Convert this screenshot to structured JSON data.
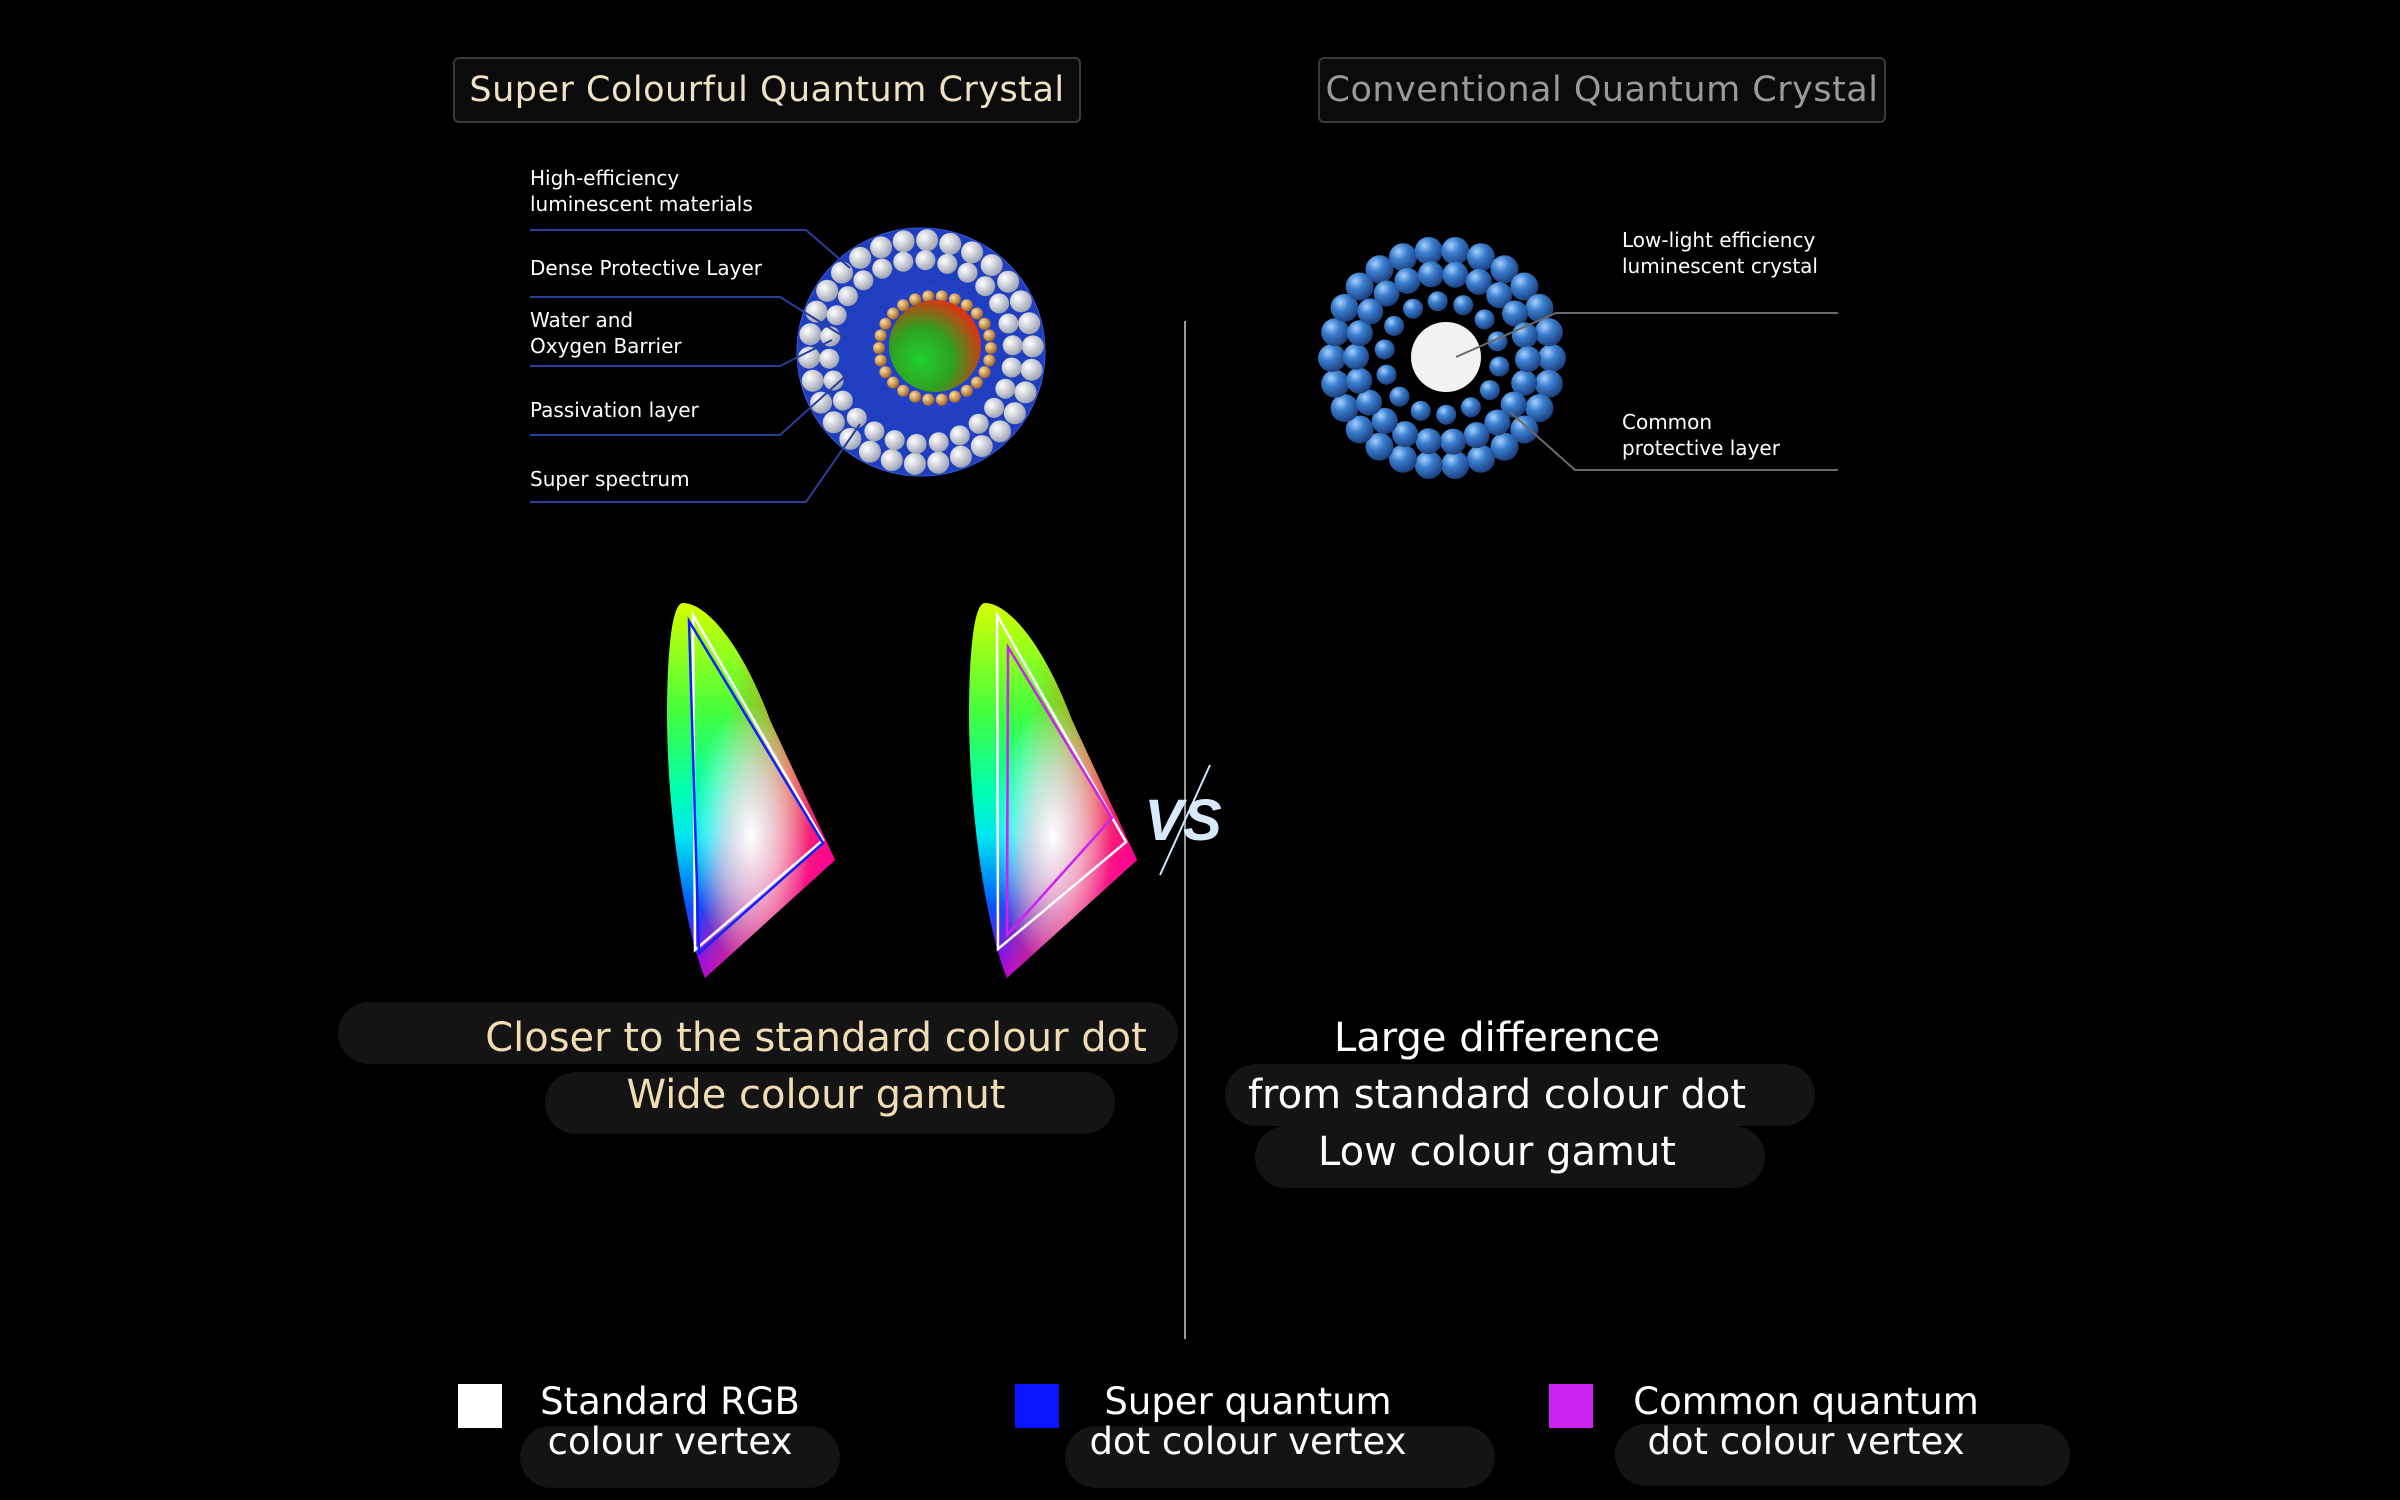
{
  "left": {
    "title": "Super Colourful Quantum Crystal",
    "labels": [
      {
        "line1": "High-efficiency",
        "line2": "luminescent materials"
      },
      {
        "line1": "Dense Protective Layer",
        "line2": ""
      },
      {
        "line1": "Water and",
        "line2": "Oxygen Barrier"
      },
      {
        "line1": "Passivation layer",
        "line2": ""
      },
      {
        "line1": "Super spectrum",
        "line2": ""
      }
    ],
    "caption": [
      "Closer to the standard colour dot",
      "Wide colour gamut"
    ]
  },
  "right": {
    "title": "Conventional Quantum Crystal",
    "labels": [
      {
        "line1": "Low-light efficiency",
        "line2": "luminescent crystal"
      },
      {
        "line1": "Common",
        "line2": "protective layer"
      }
    ],
    "caption": [
      "Large difference",
      "from standard colour dot",
      "Low colour gamut"
    ]
  },
  "vs_text": "VS",
  "legend": [
    {
      "line1": "Standard RGB",
      "line2": "colour vertex",
      "color": "#ffffff"
    },
    {
      "line1": "Super quantum",
      "line2": "dot colour vertex",
      "color": "#0a14ff"
    },
    {
      "line1": "Common quantum",
      "line2": "dot colour vertex",
      "color": "#cc22f0"
    }
  ],
  "colors": {
    "background": "#000000",
    "title_left": "#efe2c4",
    "title_right": "#9a9a9a",
    "caption_left": "#f1dcb3",
    "leader_line_left": "#2a3f9a",
    "leader_line_right": "#6a6a6a"
  }
}
